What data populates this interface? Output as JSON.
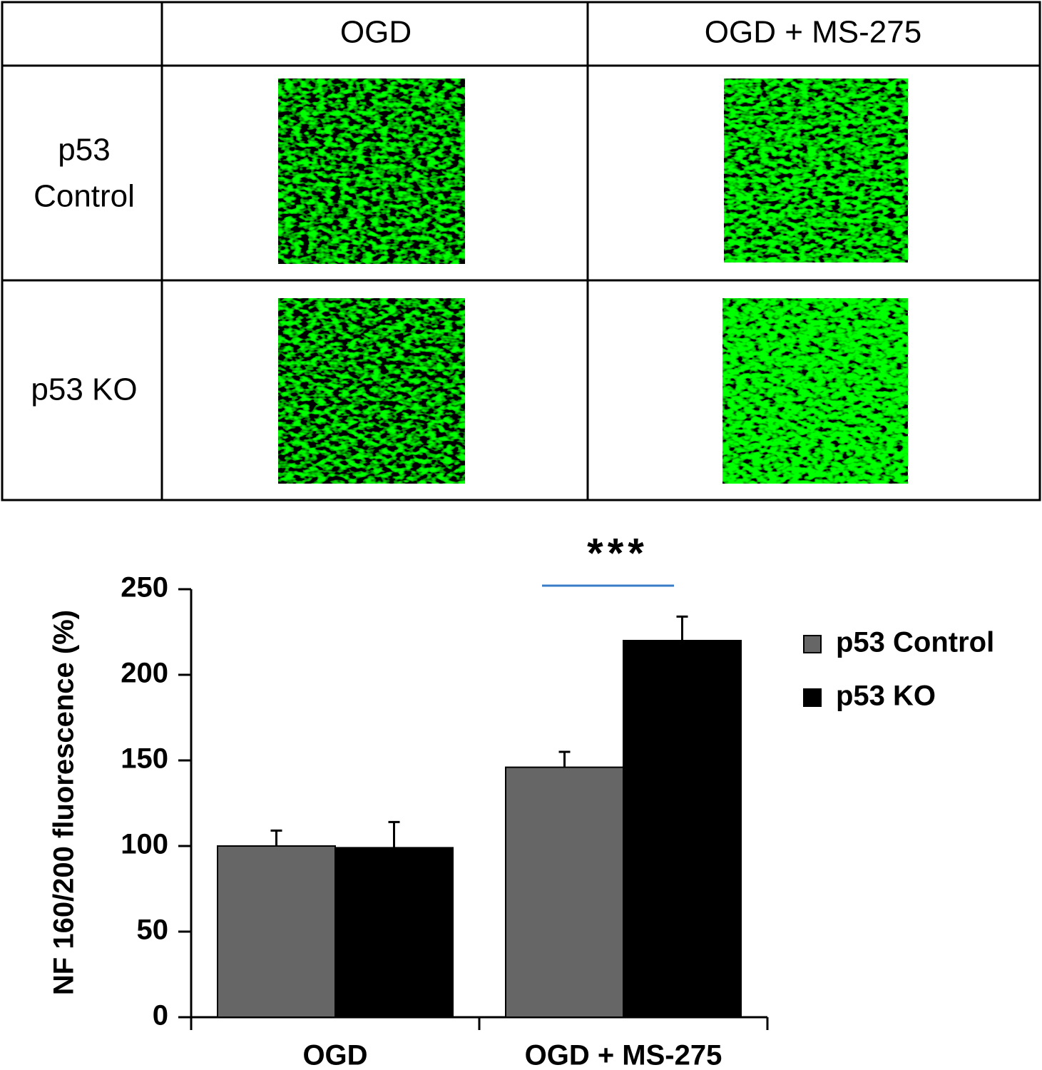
{
  "table": {
    "columns": [
      "OGD",
      "OGD + MS-275"
    ],
    "rows": [
      {
        "label": [
          "p53",
          "Control"
        ]
      },
      {
        "label": [
          "p53 KO"
        ]
      }
    ]
  },
  "chart_data": {
    "type": "bar",
    "ylabel": "NF 160/200 fluorescence (%)",
    "significance": "***",
    "categories": [
      "OGD",
      "OGD + MS-275"
    ],
    "series": [
      {
        "name": "p53 Control",
        "color": "#666666",
        "values": [
          100,
          146
        ],
        "errors": [
          9,
          9
        ]
      },
      {
        "name": "p53 KO",
        "color": "#000000",
        "values": [
          99,
          220
        ],
        "errors": [
          15,
          14
        ]
      }
    ],
    "ylim": [
      0,
      250
    ],
    "yticks": [
      0,
      50,
      100,
      150,
      200,
      250
    ],
    "legend": "right"
  }
}
